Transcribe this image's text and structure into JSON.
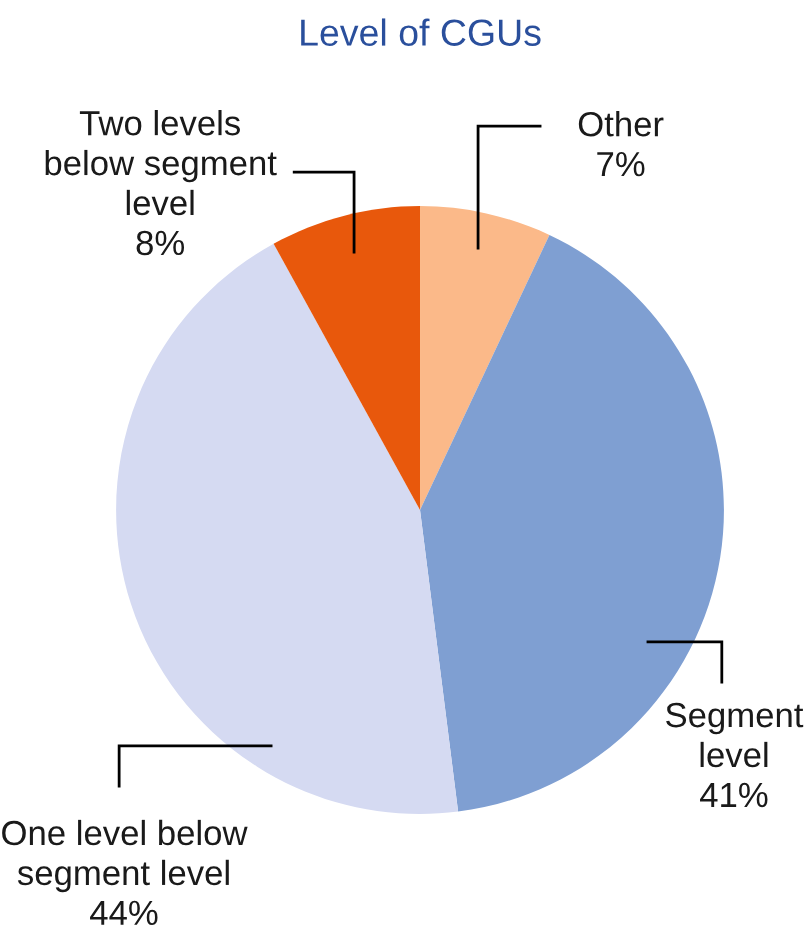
{
  "chart_data": {
    "type": "pie",
    "title": "Level of CGUs",
    "categories": [
      "Other",
      "Segment\nlevel",
      "One level below\nsegment level",
      "Two levels\nbelow segment\nlevel"
    ],
    "values": [
      7,
      41,
      44,
      8
    ],
    "value_labels": [
      "7%",
      "41%",
      "44%",
      "8%"
    ],
    "colors": [
      "#fbb989",
      "#7f9fd2",
      "#d5daf2",
      "#e8580c"
    ]
  }
}
